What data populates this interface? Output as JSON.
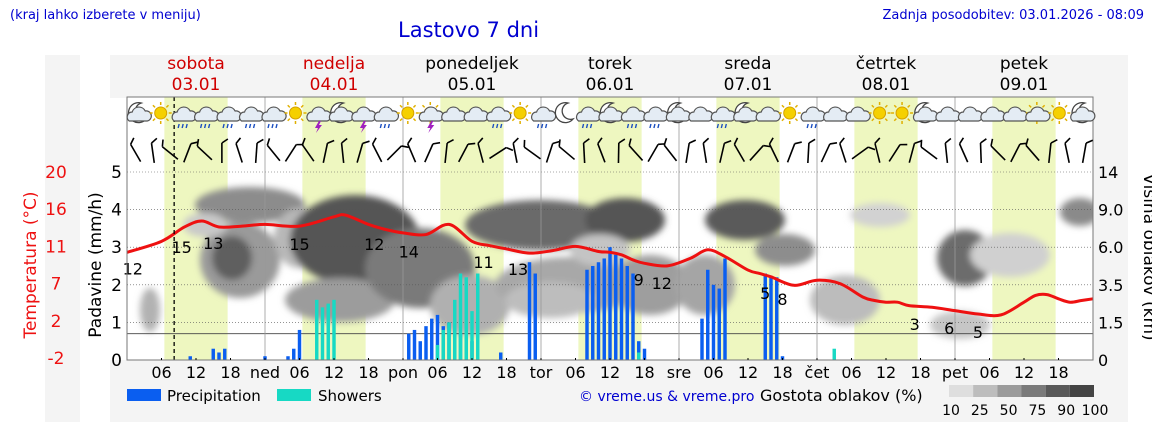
{
  "header": {
    "location_note": "(kraj lahko izberete v meniju)",
    "title": "Lastovo 7 dni",
    "updated": "Zadnja posodobitev: 03.01.2026 - 08:09",
    "copyright": "© vreme.us & vreme.pro"
  },
  "days": [
    {
      "name": "sobota",
      "date": "03.01",
      "weekend": true
    },
    {
      "name": "nedelja",
      "date": "04.01",
      "weekend": true
    },
    {
      "name": "ponedeljek",
      "date": "05.01",
      "weekend": false
    },
    {
      "name": "torek",
      "date": "06.01",
      "weekend": false
    },
    {
      "name": "sreda",
      "date": "07.01",
      "weekend": false
    },
    {
      "name": "četrtek",
      "date": "08.01",
      "weekend": false
    },
    {
      "name": "petek",
      "date": "09.01",
      "weekend": false
    }
  ],
  "x_tick_labels": [
    "06",
    "12",
    "18",
    "ned",
    "06",
    "12",
    "18",
    "pon",
    "06",
    "12",
    "18",
    "tor",
    "06",
    "12",
    "18",
    "sre",
    "06",
    "12",
    "18",
    "čet",
    "06",
    "12",
    "18",
    "pet",
    "06",
    "12",
    "18"
  ],
  "colors": {
    "weekend": "#d00000",
    "temperature": "#ee1111",
    "precipitation": "#0a5ef0",
    "showers": "#17d9c4",
    "link": "#0000d0",
    "daylight": "#eef7c0"
  },
  "chart_data": {
    "type": "line",
    "title": "Lastovo 7 dni",
    "x_unit": "hours from Sat 03.01 00:00",
    "xlim": [
      0,
      168
    ],
    "now_hour": 8.2,
    "axes": {
      "temperature": {
        "label": "Temperatura (°C)",
        "ticks": [
          "20",
          "16",
          "11",
          "7",
          "2",
          "-2"
        ],
        "range": [
          -2,
          20
        ]
      },
      "precipitation": {
        "label": "Padavine (mm/h)",
        "ticks": [
          "0",
          "1",
          "2",
          "3",
          "4",
          "5"
        ],
        "range": [
          0,
          5
        ]
      },
      "cloud_height": {
        "label": "Višina oblakov (km)",
        "ticks": [
          "0",
          "1.5",
          "3.5",
          "6.0",
          "9.0",
          "14"
        ]
      }
    },
    "temperature_series": {
      "name": "Temperatura",
      "x": [
        0,
        6,
        10,
        13,
        16,
        20,
        24,
        30,
        36,
        38,
        42,
        45,
        48,
        52,
        56,
        60,
        63,
        66,
        70,
        74,
        78,
        82,
        84,
        86,
        88,
        90,
        94,
        98,
        101,
        104,
        108,
        110,
        112,
        116,
        120,
        124,
        128,
        130,
        132,
        134,
        136,
        140,
        144,
        148,
        152,
        156,
        158,
        160,
        162,
        164,
        166,
        168
      ],
      "y": [
        10.5,
        11.8,
        13.5,
        14.2,
        13.5,
        13.6,
        13.8,
        13.6,
        14.7,
        14.9,
        13.8,
        13.2,
        12.8,
        12.6,
        13.8,
        11.8,
        11.3,
        10.9,
        10.4,
        10.7,
        11.2,
        10.6,
        10.5,
        10.2,
        9.6,
        9.2,
        8.9,
        9.8,
        10.8,
        10.0,
        8.4,
        8.0,
        7.6,
        6.6,
        7.2,
        6.8,
        5.2,
        4.8,
        4.6,
        4.6,
        4.2,
        4.0,
        3.6,
        3.2,
        3.1,
        4.6,
        5.4,
        5.5,
        5.0,
        4.6,
        4.8,
        5.0
      ]
    },
    "temperature_labels": [
      {
        "x": 1,
        "value": "12"
      },
      {
        "x": 9.5,
        "value": "15"
      },
      {
        "x": 15,
        "value": "13"
      },
      {
        "x": 30,
        "value": "15"
      },
      {
        "x": 43,
        "value": "12"
      },
      {
        "x": 49,
        "value": "14"
      },
      {
        "x": 62,
        "value": "11"
      },
      {
        "x": 68,
        "value": "13"
      },
      {
        "x": 89,
        "value": "9"
      },
      {
        "x": 93,
        "value": "12"
      },
      {
        "x": 111,
        "value": "5"
      },
      {
        "x": 114,
        "value": "8"
      },
      {
        "x": 137,
        "value": "3"
      },
      {
        "x": 143,
        "value": "6"
      },
      {
        "x": 148,
        "value": "5"
      }
    ],
    "precipitation_series": {
      "name": "Precipitation",
      "x": [
        11,
        15,
        16,
        17,
        24,
        28,
        29,
        30,
        49,
        50,
        51,
        52,
        53,
        54,
        55,
        56,
        57,
        58,
        59,
        60,
        65,
        70,
        71,
        80,
        81,
        82,
        83,
        84,
        85,
        86,
        87,
        88,
        89,
        90,
        100,
        101,
        102,
        103,
        104,
        111,
        112,
        113,
        114
      ],
      "y": [
        0.1,
        0.3,
        0.2,
        0.3,
        0.1,
        0.1,
        0.3,
        0.8,
        0.7,
        0.8,
        0.5,
        0.9,
        1.1,
        1.2,
        0.9,
        1.0,
        0.8,
        0.7,
        0.6,
        0.5,
        0.2,
        2.6,
        2.3,
        2.4,
        2.5,
        2.6,
        2.7,
        3.0,
        2.8,
        2.7,
        2.5,
        2.3,
        0.5,
        0.3,
        1.1,
        2.4,
        2.0,
        1.9,
        2.7,
        2.3,
        2.2,
        2.2,
        0.1
      ]
    },
    "showers_series": {
      "name": "Showers",
      "x": [
        33,
        34,
        35,
        36,
        54,
        55,
        56,
        57,
        58,
        59,
        60,
        61,
        89,
        123
      ],
      "y": [
        1.6,
        1.4,
        1.5,
        1.6,
        0.4,
        0.8,
        1.0,
        1.6,
        2.3,
        2.2,
        1.3,
        2.3,
        0.2,
        0.3
      ]
    },
    "legend": {
      "precipitation": "Precipitation",
      "showers": "Showers",
      "cloud_density_title": "Gostota oblakov (%)",
      "cloud_density_ticks": [
        "10",
        "25",
        "50",
        "75",
        "90",
        "100"
      ]
    },
    "icons": [
      "moon-cloud",
      "sun",
      "cloud-rain",
      "cloud-rain",
      "cloud-rain",
      "cloud-rain",
      "cloud-rain",
      "sun",
      "thunder",
      "moon-cloud",
      "thunder",
      "cloud-rain",
      "sun",
      "sun-thunder",
      "cloud",
      "cloud",
      "cloud-rain",
      "sun",
      "cloud-rain",
      "moon",
      "cloud-rain",
      "moon-cloud",
      "cloud-rain",
      "cloud-rain",
      "moon-cloud",
      "cloud",
      "cloud-rain",
      "moon-cloud",
      "cloud",
      "sun",
      "cloud-rain",
      "cloud",
      "cloud",
      "sun",
      "sun",
      "moon-cloud",
      "cloud",
      "cloud",
      "cloud",
      "cloud",
      "sun-cloud",
      "sun",
      "moon-cloud"
    ]
  }
}
